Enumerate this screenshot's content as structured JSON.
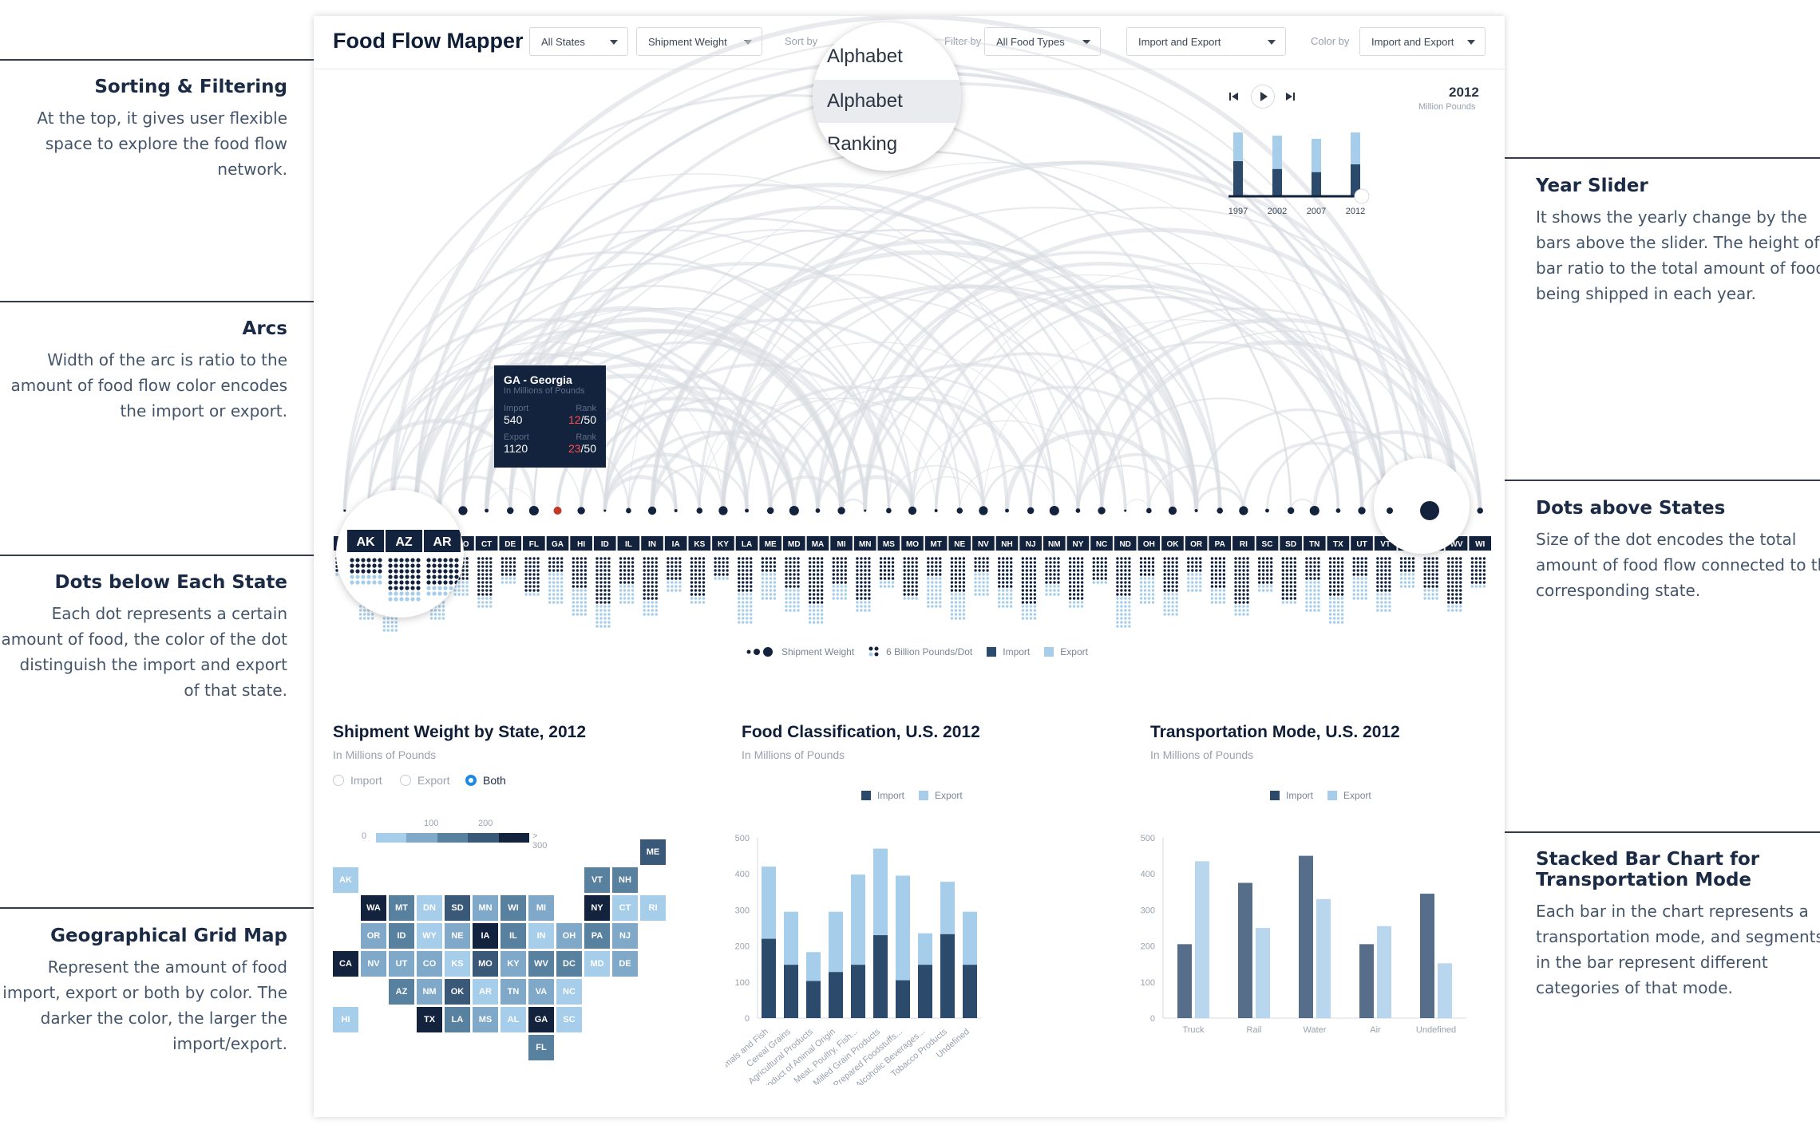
{
  "annotations": {
    "sorting": {
      "title": "Sorting & Filtering",
      "text": "At the top, it gives user flexible space to explore the food flow network."
    },
    "arcs": {
      "title": "Arcs",
      "text": "Width of the arc is ratio to the amount of food flow color encodes the import or export."
    },
    "dots_below": {
      "title": "Dots below Each State",
      "text": "Each dot represents a certain amount of food, the color of the dot distinguish the import and export of that state."
    },
    "grid_map": {
      "title": "Geographical Grid Map",
      "text": "Represent the amount of food import, export or both by color. The darker the color, the larger the import/export."
    },
    "year_slider": {
      "title": "Year Slider",
      "text": "It shows the yearly change by the bars above the slider. The height of bar ratio to the total amount of food being shipped in each year."
    },
    "dots_above": {
      "title": "Dots above States",
      "text": "Size of the dot encodes the total amount of food flow connected to the corresponding state."
    },
    "stacked_bar": {
      "title": "Stacked Bar Chart for Transportation Mode",
      "text": "Each bar in the chart represents a transportation mode, and segments in the bar represent different categories of that mode."
    }
  },
  "app": {
    "title": "Food Flow Mapper",
    "toolbar": {
      "states": "All States",
      "measure": "Shipment Weight",
      "sort_label": "Sort by",
      "filter_label": "Filter by",
      "food_types": "All Food Types",
      "flow": "Import and Export",
      "color_label": "Color by",
      "color_value": "Import and Export"
    },
    "sort_options": [
      "Alphabet",
      "Alphabet",
      "Ranking"
    ],
    "tooltip": {
      "title": "GA - Georgia",
      "subtitle": "In Millions of Pounds",
      "import_label": "Import",
      "import_value": "540",
      "import_rank_label": "Rank",
      "import_rank": "12",
      "import_rank_total": "/50",
      "export_label": "Export",
      "export_value": "1120",
      "export_rank_label": "Rank",
      "export_rank": "23",
      "export_rank_total": "/50"
    },
    "year_slider": {
      "year": "2012",
      "unit": "Million Pounds",
      "years": [
        "1997",
        "2002",
        "2007",
        "2012"
      ],
      "import_share": [
        0.55,
        0.45,
        0.42,
        0.5
      ],
      "total": [
        1.0,
        0.95,
        0.9,
        1.0
      ]
    },
    "states": [
      "AL",
      "AK",
      "AZ",
      "AR",
      "CA",
      "CO",
      "CT",
      "DE",
      "FL",
      "GA",
      "HI",
      "ID",
      "IL",
      "IN",
      "IA",
      "KS",
      "KY",
      "LA",
      "ME",
      "MD",
      "MA",
      "MI",
      "MN",
      "MS",
      "MO",
      "MT",
      "NE",
      "NV",
      "NH",
      "NJ",
      "NM",
      "NY",
      "NC",
      "ND",
      "OH",
      "OK",
      "OR",
      "PA",
      "RI",
      "SC",
      "SD",
      "TN",
      "TX",
      "UT",
      "VT",
      "VA",
      "WA",
      "WV",
      "WI"
    ],
    "magnified_states": [
      "AK",
      "AZ",
      "AR"
    ],
    "legend": {
      "weight": "Shipment Weight",
      "unit": "6 Billion Pounds/Dot",
      "import": "Import",
      "export": "Export"
    },
    "colors": {
      "import": "#2c4a6b",
      "export": "#a6cdea",
      "dark": "#14233d",
      "arc": "#d9dce1",
      "accent": "#1d89e6"
    }
  },
  "panels": {
    "grid_map": {
      "title": "Shipment Weight by State, 2012",
      "subtitle": "In Millions of Pounds",
      "radios": [
        "Import",
        "Export",
        "Both"
      ],
      "selected": "Both",
      "scale_ticks": [
        "0",
        "100",
        "200",
        "> 300"
      ],
      "tiles": [
        {
          "s": "ME",
          "r": 0,
          "c": 11,
          "v": 4
        },
        {
          "s": "AK",
          "r": 1,
          "c": 0,
          "v": 1
        },
        {
          "s": "VT",
          "r": 1,
          "c": 9,
          "v": 3
        },
        {
          "s": "NH",
          "r": 1,
          "c": 10,
          "v": 3
        },
        {
          "s": "WA",
          "r": 2,
          "c": 1,
          "v": 5
        },
        {
          "s": "MT",
          "r": 2,
          "c": 2,
          "v": 3
        },
        {
          "s": "DN",
          "r": 2,
          "c": 3,
          "v": 1
        },
        {
          "s": "SD",
          "r": 2,
          "c": 4,
          "v": 4
        },
        {
          "s": "MN",
          "r": 2,
          "c": 5,
          "v": 2
        },
        {
          "s": "WI",
          "r": 2,
          "c": 6,
          "v": 3
        },
        {
          "s": "MI",
          "r": 2,
          "c": 7,
          "v": 2
        },
        {
          "s": "NY",
          "r": 2,
          "c": 9,
          "v": 5
        },
        {
          "s": "CT",
          "r": 2,
          "c": 10,
          "v": 1
        },
        {
          "s": "RI",
          "r": 2,
          "c": 11,
          "v": 1
        },
        {
          "s": "OR",
          "r": 3,
          "c": 1,
          "v": 2
        },
        {
          "s": "ID",
          "r": 3,
          "c": 2,
          "v": 3
        },
        {
          "s": "WY",
          "r": 3,
          "c": 3,
          "v": 1
        },
        {
          "s": "NE",
          "r": 3,
          "c": 4,
          "v": 2
        },
        {
          "s": "IA",
          "r": 3,
          "c": 5,
          "v": 5
        },
        {
          "s": "IL",
          "r": 3,
          "c": 6,
          "v": 3
        },
        {
          "s": "IN",
          "r": 3,
          "c": 7,
          "v": 1
        },
        {
          "s": "OH",
          "r": 3,
          "c": 8,
          "v": 2
        },
        {
          "s": "PA",
          "r": 3,
          "c": 9,
          "v": 3
        },
        {
          "s": "NJ",
          "r": 3,
          "c": 10,
          "v": 2
        },
        {
          "s": "CA",
          "r": 4,
          "c": 0,
          "v": 5
        },
        {
          "s": "NV",
          "r": 4,
          "c": 1,
          "v": 2
        },
        {
          "s": "UT",
          "r": 4,
          "c": 2,
          "v": 2
        },
        {
          "s": "CO",
          "r": 4,
          "c": 3,
          "v": 2
        },
        {
          "s": "KS",
          "r": 4,
          "c": 4,
          "v": 1
        },
        {
          "s": "MO",
          "r": 4,
          "c": 5,
          "v": 4
        },
        {
          "s": "KY",
          "r": 4,
          "c": 6,
          "v": 2
        },
        {
          "s": "WV",
          "r": 4,
          "c": 7,
          "v": 3
        },
        {
          "s": "DC",
          "r": 4,
          "c": 8,
          "v": 3
        },
        {
          "s": "MD",
          "r": 4,
          "c": 9,
          "v": 1
        },
        {
          "s": "DE",
          "r": 4,
          "c": 10,
          "v": 2
        },
        {
          "s": "AZ",
          "r": 5,
          "c": 2,
          "v": 3
        },
        {
          "s": "NM",
          "r": 5,
          "c": 3,
          "v": 2
        },
        {
          "s": "OK",
          "r": 5,
          "c": 4,
          "v": 4
        },
        {
          "s": "AR",
          "r": 5,
          "c": 5,
          "v": 1
        },
        {
          "s": "TN",
          "r": 5,
          "c": 6,
          "v": 2
        },
        {
          "s": "VA",
          "r": 5,
          "c": 7,
          "v": 2
        },
        {
          "s": "NC",
          "r": 5,
          "c": 8,
          "v": 1
        },
        {
          "s": "HI",
          "r": 6,
          "c": 0,
          "v": 1
        },
        {
          "s": "TX",
          "r": 6,
          "c": 3,
          "v": 5
        },
        {
          "s": "LA",
          "r": 6,
          "c": 4,
          "v": 3
        },
        {
          "s": "MS",
          "r": 6,
          "c": 5,
          "v": 2
        },
        {
          "s": "AL",
          "r": 6,
          "c": 6,
          "v": 1
        },
        {
          "s": "GA",
          "r": 6,
          "c": 7,
          "v": 5
        },
        {
          "s": "SC",
          "r": 6,
          "c": 8,
          "v": 1
        },
        {
          "s": "FL",
          "r": 7,
          "c": 7,
          "v": 3
        }
      ]
    },
    "food": {
      "title": "Food Classification, U.S. 2012",
      "subtitle": "In Millions of Pounds"
    },
    "transport": {
      "title": "Transportation Mode, U.S. 2012",
      "subtitle": "In Millions of Pounds"
    }
  },
  "chart_data": [
    {
      "type": "bar",
      "title": "Food Classification, U.S. 2012",
      "ylabel": "In Millions of Pounds",
      "ylim": [
        0,
        500
      ],
      "yticks": [
        0,
        100,
        200,
        300,
        400,
        500
      ],
      "categories": [
        "Animals and Fish",
        "Cereal Grains",
        "Agricultural Products",
        "Product of Animal Origin",
        "Meat, Poultry, Fish...",
        "Milled Grain Products",
        "Other Prepared Foodstuffs...",
        "Alcoholic Beverages...",
        "Tobacco Products",
        "Undefined"
      ],
      "series": [
        {
          "name": "Import",
          "values": [
            220,
            148,
            103,
            128,
            148,
            230,
            105,
            148,
            233,
            148
          ]
        },
        {
          "name": "Export",
          "values": [
            200,
            147,
            80,
            167,
            250,
            240,
            290,
            87,
            145,
            147
          ]
        }
      ]
    },
    {
      "type": "bar",
      "title": "Transportation Mode, U.S. 2012",
      "ylabel": "In Millions of Pounds",
      "ylim": [
        0,
        500
      ],
      "yticks": [
        0,
        100,
        200,
        300,
        400,
        500
      ],
      "categories": [
        "Truck",
        "Rail",
        "Water",
        "Air",
        "Undefined"
      ],
      "series": [
        {
          "name": "Import",
          "values": [
            205,
            375,
            450,
            205,
            345
          ]
        },
        {
          "name": "Export",
          "values": [
            435,
            250,
            330,
            255,
            152
          ]
        }
      ]
    }
  ]
}
